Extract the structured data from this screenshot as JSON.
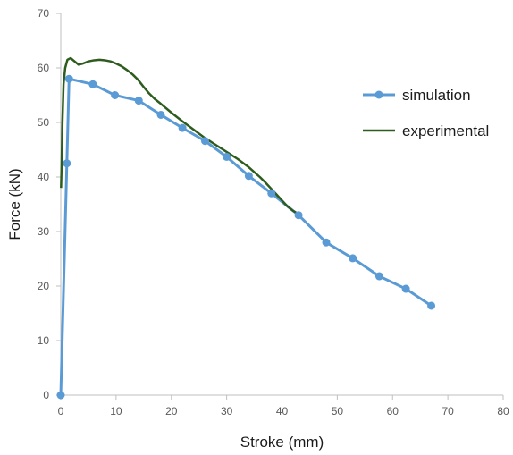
{
  "chart_data": {
    "type": "line",
    "xlabel": "Stroke (mm)",
    "ylabel": "Force (kN)",
    "xlim": [
      0,
      80
    ],
    "ylim": [
      0,
      70
    ],
    "x_ticks": [
      "0",
      "10",
      "20",
      "30",
      "40",
      "50",
      "60",
      "70",
      "80"
    ],
    "y_ticks": [
      "0",
      "10",
      "20",
      "30",
      "40",
      "50",
      "60",
      "70"
    ],
    "grid": false,
    "legend_position": "right",
    "series": [
      {
        "name": "simulation",
        "color": "#5b9bd5",
        "marker": "circle",
        "x": [
          0,
          1.1,
          1.5,
          5.8,
          9.8,
          14.1,
          18.1,
          22.0,
          26.1,
          30.0,
          34.0,
          38.1,
          43.0,
          48.0,
          52.8,
          57.6,
          62.4,
          67.0
        ],
        "y": [
          0,
          42.5,
          58.0,
          57.0,
          55.0,
          54.0,
          51.4,
          49.0,
          46.6,
          43.7,
          40.2,
          37.0,
          33.0,
          28.0,
          25.1,
          21.8,
          19.5,
          16.4
        ]
      },
      {
        "name": "experimental",
        "color": "#2e5c1f",
        "marker": "none",
        "x": [
          0.05,
          0.15,
          0.3,
          0.5,
          0.8,
          1.2,
          1.8,
          2.5,
          3.2,
          4.0,
          5.0,
          6.0,
          7.0,
          8.0,
          9.0,
          10.0,
          11.0,
          12.0,
          13.0,
          14.0,
          15.0,
          16.0,
          17.0,
          18.0,
          20.0,
          22.0,
          24.0,
          26.0,
          28.0,
          30.0,
          32.0,
          34.0,
          35.0,
          36.0,
          37.0,
          38.0,
          39.0,
          40.0,
          41.0,
          42.0,
          43.0
        ],
        "y": [
          38.0,
          42.0,
          50.0,
          57.0,
          60.0,
          61.5,
          61.8,
          61.2,
          60.6,
          60.8,
          61.2,
          61.4,
          61.5,
          61.4,
          61.2,
          60.8,
          60.3,
          59.6,
          58.8,
          57.8,
          56.5,
          55.3,
          54.3,
          53.5,
          51.8,
          50.2,
          48.7,
          47.2,
          45.9,
          44.6,
          43.3,
          41.8,
          40.9,
          40.0,
          39.0,
          37.9,
          36.8,
          35.7,
          34.6,
          33.8,
          33.2
        ]
      }
    ]
  }
}
